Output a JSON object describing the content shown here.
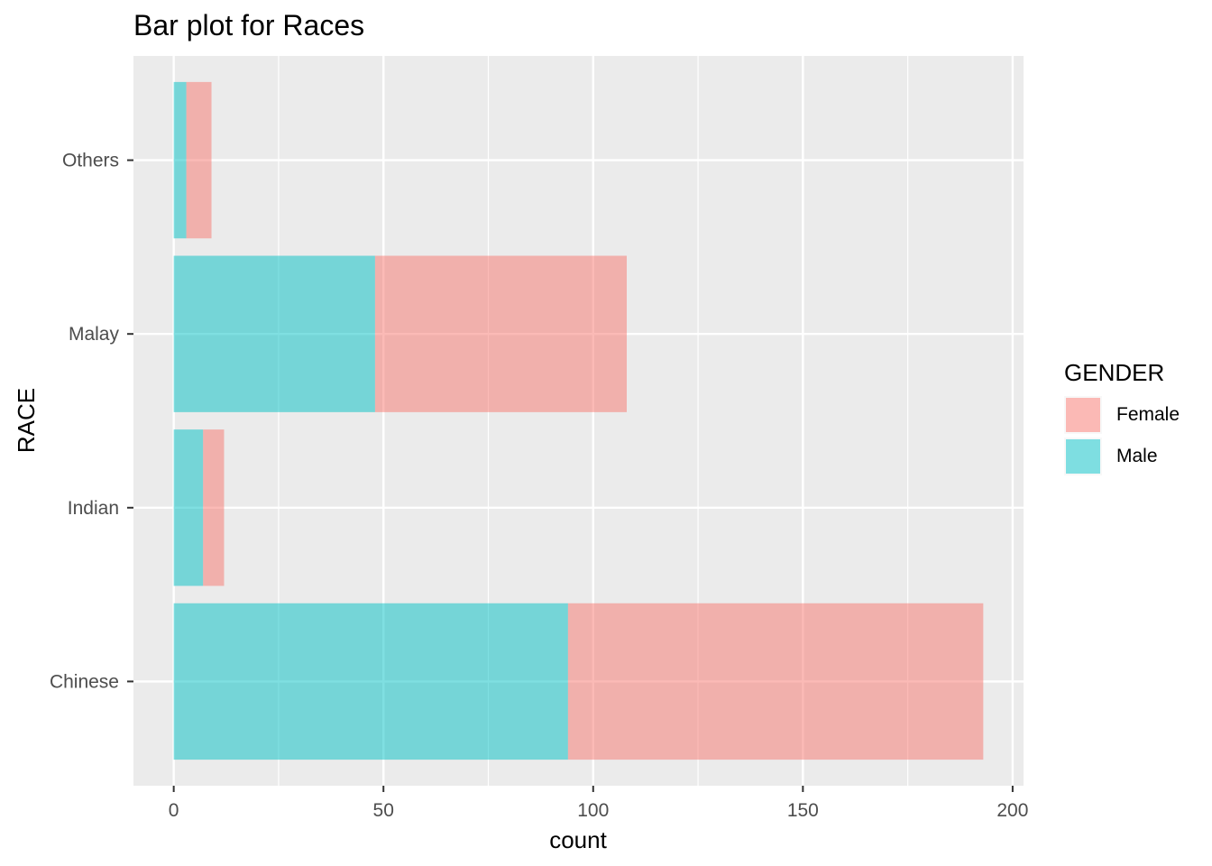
{
  "chart_data": {
    "type": "bar",
    "orientation": "horizontal",
    "stacked": true,
    "title": "Bar plot for Races",
    "xlabel": "count",
    "ylabel": "RACE",
    "categories": [
      "Chinese",
      "Indian",
      "Malay",
      "Others"
    ],
    "series": [
      {
        "name": "Male",
        "color": "#00bfc4",
        "values": [
          94,
          7,
          48,
          3
        ]
      },
      {
        "name": "Female",
        "color": "#f8766d",
        "values": [
          99,
          5,
          60,
          6
        ]
      }
    ],
    "xlim": [
      -9.6,
      202.6
    ],
    "x_ticks": [
      0,
      50,
      100,
      150,
      200
    ],
    "x_tick_labels": [
      "0",
      "50",
      "100",
      "150",
      "200"
    ],
    "grid": true,
    "background": "#ebebeb",
    "bar_opacity": 0.5,
    "legend": {
      "title": "GENDER",
      "position": "right",
      "items": [
        {
          "label": "Female",
          "color": "#f8766d"
        },
        {
          "label": "Male",
          "color": "#00bfc4"
        }
      ]
    }
  }
}
